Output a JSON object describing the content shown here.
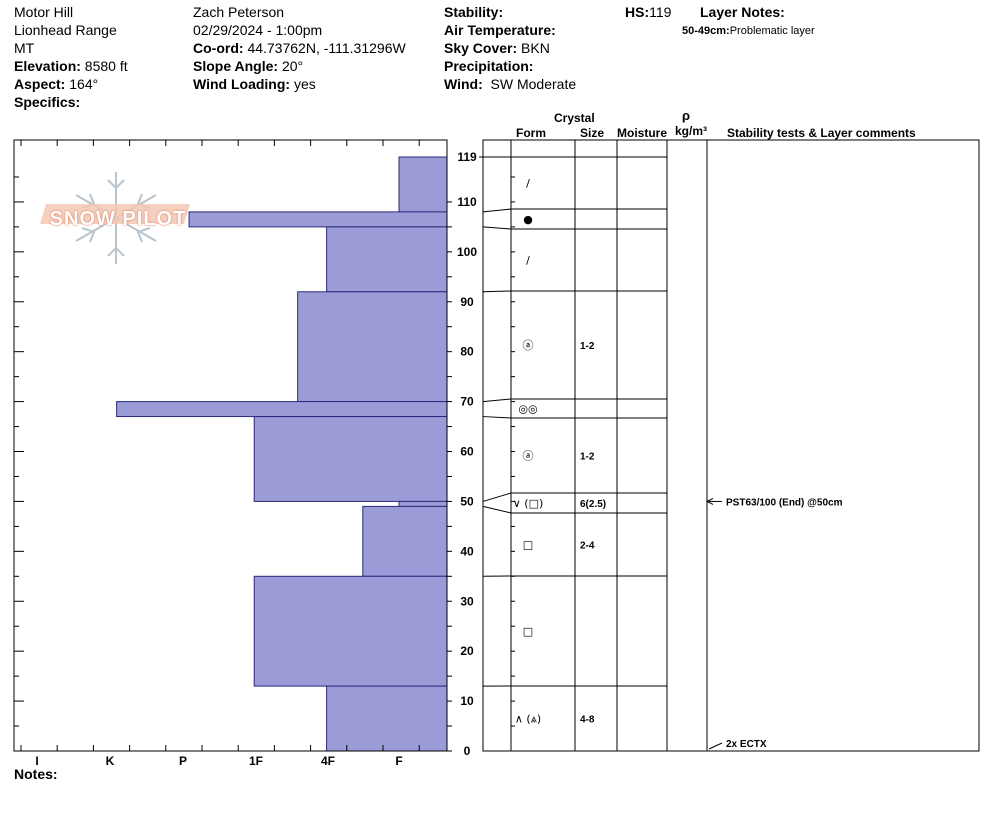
{
  "header": {
    "location": "Motor Hill",
    "range": "Lionhead Range",
    "state": "MT",
    "elevation_label": "Elevation:",
    "elevation_value": "8580 ft",
    "aspect_label": "Aspect:",
    "aspect_value": "164°",
    "specifics_label": "Specifics:",
    "observer": "Zach Peterson",
    "datetime": "02/29/2024 - 1:00pm",
    "coord_label": "Co-ord:",
    "coord_value": "44.73762N, -111.31296W",
    "slope_label": "Slope Angle:",
    "slope_value": "20°",
    "wind_loading_label": "Wind Loading:",
    "wind_loading_value": "yes",
    "stability_label": "Stability:",
    "air_temp_label": "Air Temperature:",
    "sky_label": "Sky Cover:",
    "sky_value": "BKN",
    "precip_label": "Precipitation:",
    "wind_label": "Wind:",
    "wind_value": "SW Moderate",
    "hs_label": "HS:",
    "hs_value": "119",
    "layer_notes_label": "Layer Notes:",
    "layer_note_range": "50-49cm:",
    "layer_note_text": "Problematic layer"
  },
  "columns": {
    "crystal": "Crystal",
    "form": "Form",
    "size": "Size",
    "moisture": "Moisture",
    "rho": "ρ",
    "density_unit": "kg/m³",
    "comments": "Stability tests & Layer comments"
  },
  "logo_text": "SNOW PILOT",
  "notes_label": "Notes:",
  "colors": {
    "fill": "#9b9bd8",
    "stroke": "#2a2a7a"
  },
  "chart_data": {
    "type": "bar",
    "orientation": "horizontal",
    "hardness_ticks": [
      "I",
      "K",
      "P",
      "1F",
      "4F",
      "F"
    ],
    "depth_ticks": [
      0,
      10,
      20,
      30,
      40,
      50,
      60,
      70,
      80,
      90,
      100,
      110,
      119
    ],
    "ylim": [
      0,
      119
    ],
    "layers": [
      {
        "top": 119,
        "bottom": 108,
        "hardness": "F"
      },
      {
        "top": 108,
        "bottom": 105,
        "hardness": "1F+"
      },
      {
        "top": 105,
        "bottom": 92,
        "hardness": "4F"
      },
      {
        "top": 92,
        "bottom": 70,
        "hardness": "4F+"
      },
      {
        "top": 70,
        "bottom": 67,
        "hardness": "P-"
      },
      {
        "top": 67,
        "bottom": 50,
        "hardness": "1F"
      },
      {
        "top": 50,
        "bottom": 49,
        "hardness": "F"
      },
      {
        "top": 49,
        "bottom": 35,
        "hardness": "4F-"
      },
      {
        "top": 35,
        "bottom": 13,
        "hardness": "1F"
      },
      {
        "top": 13,
        "bottom": 0,
        "hardness": "4F"
      }
    ],
    "hardness_values": {
      "F": 1.0,
      "1F+": 3.9,
      "4F": 2.0,
      "4F+": 2.4,
      "P-": 4.9,
      "1F": 3.0,
      "4F-": 1.5
    },
    "strat_layers": [
      {
        "top": 119,
        "bottom": 108,
        "form": "/",
        "size": ""
      },
      {
        "top": 108,
        "bottom": 105,
        "form": "●",
        "size": ""
      },
      {
        "top": 105,
        "bottom": 92,
        "form": "/",
        "size": ""
      },
      {
        "top": 92,
        "bottom": 70,
        "form": "ⓐ",
        "size": "1-2"
      },
      {
        "top": 70,
        "bottom": 67,
        "form": "◎◎",
        "size": ""
      },
      {
        "top": 67,
        "bottom": 50,
        "form": "ⓐ",
        "size": "1-2"
      },
      {
        "top": 50,
        "bottom": 49,
        "form": "∨ (□)",
        "size": "6(2.5)"
      },
      {
        "top": 49,
        "bottom": 35,
        "form": "□",
        "size": "2-4"
      },
      {
        "top": 35,
        "bottom": 13,
        "form": "□",
        "size": ""
      },
      {
        "top": 13,
        "bottom": 0,
        "form": "∧ (⩓)",
        "size": "4-8"
      }
    ],
    "tests": [
      {
        "depth": 50,
        "text": "PST63/100 (End) @50cm"
      },
      {
        "depth": 0,
        "text": "2x ECTX"
      }
    ]
  }
}
